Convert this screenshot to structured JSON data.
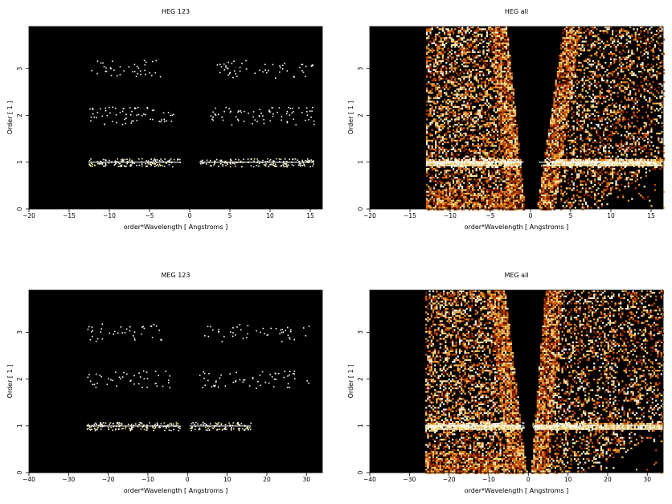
{
  "chart_data": [
    {
      "type": "heatmap",
      "title": "HEG 123",
      "xlabel": "order*Wavelength [ Angstroms ]",
      "ylabel": "Order [ 1 ]",
      "xlim": [
        -20,
        16.5
      ],
      "ylim": [
        0,
        3.9
      ],
      "xticks": [
        "−20",
        "−15",
        "−10",
        "−5",
        "0",
        "5",
        "10",
        "15"
      ],
      "xtick_values": [
        -20,
        -15,
        -10,
        -5,
        0,
        5,
        10,
        15
      ],
      "yticks": [
        "0",
        "1",
        "2",
        "3"
      ],
      "ytick_values": [
        0,
        1,
        2,
        3
      ],
      "background": "#000000",
      "bands": [
        {
          "order": 1,
          "x": [
            -12.6,
            -1.2
          ],
          "strength": 0.9
        },
        {
          "order": 1,
          "x": [
            1.2,
            15.5
          ],
          "strength": 0.8
        },
        {
          "order": 2,
          "x": [
            -12.6,
            -1.9
          ],
          "strength": 0.45
        },
        {
          "order": 2,
          "x": [
            2.0,
            15.5
          ],
          "strength": 0.4
        },
        {
          "order": 3,
          "x": [
            -12.6,
            -3.2
          ],
          "strength": 0.3
        },
        {
          "order": 3,
          "x": [
            3.0,
            15.5
          ],
          "strength": 0.3
        }
      ]
    },
    {
      "type": "heatmap",
      "title": "HEG all",
      "xlabel": "order*Wavelength [ Angstroms ]",
      "ylabel": "Order [ 1 ]",
      "xlim": [
        -20,
        16.5
      ],
      "ylim": [
        0,
        3.9
      ],
      "xticks": [
        "−20",
        "−15",
        "−10",
        "−5",
        "0",
        "5",
        "10",
        "15"
      ],
      "xtick_values": [
        -20,
        -15,
        -10,
        -5,
        0,
        5,
        10,
        15
      ],
      "yticks": [
        "0",
        "1",
        "2",
        "3"
      ],
      "ytick_values": [
        0,
        1,
        2,
        3
      ],
      "background": "#000000",
      "data_region_x": [
        -13,
        16.5
      ],
      "wedge_edges": {
        "left_top_x": -3.0,
        "right_top_x": 4.0,
        "min_gap": 0.7
      },
      "bands": [
        {
          "order": 1,
          "x": [
            -12.6,
            -1.0
          ],
          "strength": 0.9
        },
        {
          "order": 1,
          "x": [
            1.0,
            15.5
          ],
          "strength": 0.85
        }
      ]
    },
    {
      "type": "heatmap",
      "title": "MEG 123",
      "xlabel": "order*Wavelength [ Angstroms ]",
      "ylabel": "Order [ 1 ]",
      "xlim": [
        -40,
        34
      ],
      "ylim": [
        0,
        3.9
      ],
      "xticks": [
        "−40",
        "−30",
        "−20",
        "−10",
        "0",
        "10",
        "20",
        "30"
      ],
      "xtick_values": [
        -40,
        -30,
        -20,
        -10,
        0,
        10,
        20,
        30
      ],
      "yticks": [
        "0",
        "1",
        "2",
        "3"
      ],
      "ytick_values": [
        0,
        1,
        2,
        3
      ],
      "background": "#000000",
      "bands": [
        {
          "order": 1,
          "x": [
            -25.5,
            -2.0
          ],
          "strength": 0.9
        },
        {
          "order": 1,
          "x": [
            0.5,
            16.0
          ],
          "strength": 0.85
        },
        {
          "order": 2,
          "x": [
            -25.5,
            -4.0
          ],
          "strength": 0.3
        },
        {
          "order": 2,
          "x": [
            2.5,
            31.0
          ],
          "strength": 0.3
        },
        {
          "order": 3,
          "x": [
            -25.5,
            -6.5
          ],
          "strength": 0.3
        },
        {
          "order": 3,
          "x": [
            4.0,
            31.0
          ],
          "strength": 0.25
        }
      ]
    },
    {
      "type": "heatmap",
      "title": "MEG all",
      "xlabel": "order*Wavelength [ Angstroms ]",
      "ylabel": "Order [ 1 ]",
      "xlim": [
        -40,
        34
      ],
      "ylim": [
        0,
        3.9
      ],
      "xticks": [
        "−40",
        "−30",
        "−20",
        "−10",
        "0",
        "10",
        "20",
        "30"
      ],
      "xtick_values": [
        -40,
        -30,
        -20,
        -10,
        0,
        10,
        20,
        30
      ],
      "yticks": [
        "0",
        "1",
        "2",
        "3"
      ],
      "ytick_values": [
        0,
        1,
        2,
        3
      ],
      "background": "#000000",
      "data_region_x": [
        -26,
        34
      ],
      "wedge_edges": {
        "left_top_x": -6.0,
        "right_top_x": 4.0,
        "min_gap": 0.5
      },
      "bands": [
        {
          "order": 1,
          "x": [
            -25.5,
            -1.0
          ],
          "strength": 0.9
        },
        {
          "order": 1,
          "x": [
            1.0,
            16.0
          ],
          "strength": 0.85
        }
      ]
    }
  ]
}
